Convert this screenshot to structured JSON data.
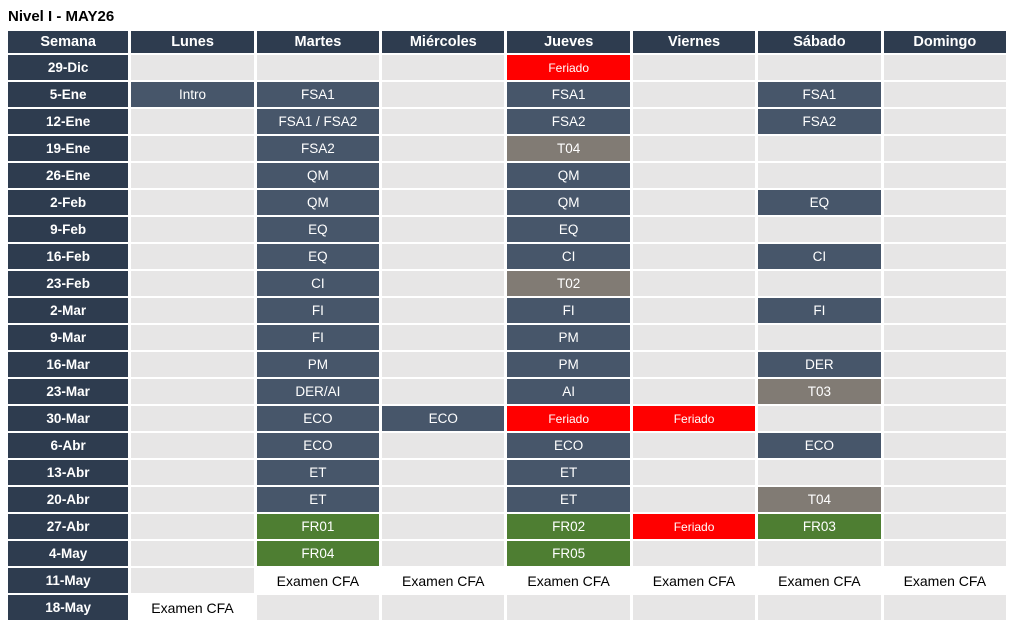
{
  "title": "Nivel I - MAY26",
  "colors": {
    "header_bg": "#2e3c4f",
    "week_bg": "#2e3c4f",
    "course_bg": "#47566a",
    "topic_bg": "#817b74",
    "holiday_bg": "#ff0000",
    "review_bg": "#4e7e32",
    "exam_bg": "#ffffff",
    "empty_bg": "#e7e6e6",
    "grid_gap": "#ffffff"
  },
  "table": {
    "headers": [
      "Semana",
      "Lunes",
      "Martes",
      "Miércoles",
      "Jueves",
      "Viernes",
      "Sábado",
      "Domingo"
    ],
    "rows": [
      {
        "week": "29-Dic",
        "cells": [
          null,
          null,
          null,
          {
            "label": "Feriado",
            "type": "holiday"
          },
          null,
          null,
          null
        ]
      },
      {
        "week": "5-Ene",
        "cells": [
          {
            "label": "Intro",
            "type": "course"
          },
          {
            "label": "FSA1",
            "type": "course"
          },
          null,
          {
            "label": "FSA1",
            "type": "course"
          },
          null,
          {
            "label": "FSA1",
            "type": "course"
          },
          null
        ]
      },
      {
        "week": "12-Ene",
        "cells": [
          null,
          {
            "label": "FSA1 / FSA2",
            "type": "course"
          },
          null,
          {
            "label": "FSA2",
            "type": "course"
          },
          null,
          {
            "label": "FSA2",
            "type": "course"
          },
          null
        ]
      },
      {
        "week": "19-Ene",
        "cells": [
          null,
          {
            "label": "FSA2",
            "type": "course"
          },
          null,
          {
            "label": "T04",
            "type": "topic"
          },
          null,
          null,
          null
        ]
      },
      {
        "week": "26-Ene",
        "cells": [
          null,
          {
            "label": "QM",
            "type": "course"
          },
          null,
          {
            "label": "QM",
            "type": "course"
          },
          null,
          null,
          null
        ]
      },
      {
        "week": "2-Feb",
        "cells": [
          null,
          {
            "label": "QM",
            "type": "course"
          },
          null,
          {
            "label": "QM",
            "type": "course"
          },
          null,
          {
            "label": "EQ",
            "type": "course"
          },
          null
        ]
      },
      {
        "week": "9-Feb",
        "cells": [
          null,
          {
            "label": "EQ",
            "type": "course"
          },
          null,
          {
            "label": "EQ",
            "type": "course"
          },
          null,
          null,
          null
        ]
      },
      {
        "week": "16-Feb",
        "cells": [
          null,
          {
            "label": "EQ",
            "type": "course"
          },
          null,
          {
            "label": "CI",
            "type": "course"
          },
          null,
          {
            "label": "CI",
            "type": "course"
          },
          null
        ]
      },
      {
        "week": "23-Feb",
        "cells": [
          null,
          {
            "label": "CI",
            "type": "course"
          },
          null,
          {
            "label": "T02",
            "type": "topic"
          },
          null,
          null,
          null
        ]
      },
      {
        "week": "2-Mar",
        "cells": [
          null,
          {
            "label": "FI",
            "type": "course"
          },
          null,
          {
            "label": "FI",
            "type": "course"
          },
          null,
          {
            "label": "FI",
            "type": "course"
          },
          null
        ]
      },
      {
        "week": "9-Mar",
        "cells": [
          null,
          {
            "label": "FI",
            "type": "course"
          },
          null,
          {
            "label": "PM",
            "type": "course"
          },
          null,
          null,
          null
        ]
      },
      {
        "week": "16-Mar",
        "cells": [
          null,
          {
            "label": "PM",
            "type": "course"
          },
          null,
          {
            "label": "PM",
            "type": "course"
          },
          null,
          {
            "label": "DER",
            "type": "course"
          },
          null
        ]
      },
      {
        "week": "23-Mar",
        "cells": [
          null,
          {
            "label": "DER/AI",
            "type": "course"
          },
          null,
          {
            "label": "AI",
            "type": "course"
          },
          null,
          {
            "label": "T03",
            "type": "topic"
          },
          null
        ]
      },
      {
        "week": "30-Mar",
        "cells": [
          null,
          {
            "label": "ECO",
            "type": "course"
          },
          {
            "label": "ECO",
            "type": "course"
          },
          {
            "label": "Feriado",
            "type": "holiday"
          },
          {
            "label": "Feriado",
            "type": "holiday"
          },
          null,
          null
        ]
      },
      {
        "week": "6-Abr",
        "cells": [
          null,
          {
            "label": "ECO",
            "type": "course"
          },
          null,
          {
            "label": "ECO",
            "type": "course"
          },
          null,
          {
            "label": "ECO",
            "type": "course"
          },
          null
        ]
      },
      {
        "week": "13-Abr",
        "cells": [
          null,
          {
            "label": "ET",
            "type": "course"
          },
          null,
          {
            "label": "ET",
            "type": "course"
          },
          null,
          null,
          null
        ]
      },
      {
        "week": "20-Abr",
        "cells": [
          null,
          {
            "label": "ET",
            "type": "course"
          },
          null,
          {
            "label": "ET",
            "type": "course"
          },
          null,
          {
            "label": "T04",
            "type": "topic"
          },
          null
        ]
      },
      {
        "week": "27-Abr",
        "cells": [
          null,
          {
            "label": "FR01",
            "type": "review"
          },
          null,
          {
            "label": "FR02",
            "type": "review"
          },
          {
            "label": "Feriado",
            "type": "holiday"
          },
          {
            "label": "FR03",
            "type": "review"
          },
          null
        ]
      },
      {
        "week": "4-May",
        "cells": [
          null,
          {
            "label": "FR04",
            "type": "review"
          },
          null,
          {
            "label": "FR05",
            "type": "review"
          },
          null,
          null,
          null
        ]
      },
      {
        "week": "11-May",
        "cells": [
          null,
          {
            "label": "Examen CFA",
            "type": "exam"
          },
          {
            "label": "Examen CFA",
            "type": "exam"
          },
          {
            "label": "Examen CFA",
            "type": "exam"
          },
          {
            "label": "Examen CFA",
            "type": "exam"
          },
          {
            "label": "Examen CFA",
            "type": "exam"
          },
          {
            "label": "Examen CFA",
            "type": "exam"
          }
        ]
      },
      {
        "week": "18-May",
        "cells": [
          {
            "label": "Examen CFA",
            "type": "exam"
          },
          null,
          null,
          null,
          null,
          null,
          null
        ]
      }
    ]
  }
}
